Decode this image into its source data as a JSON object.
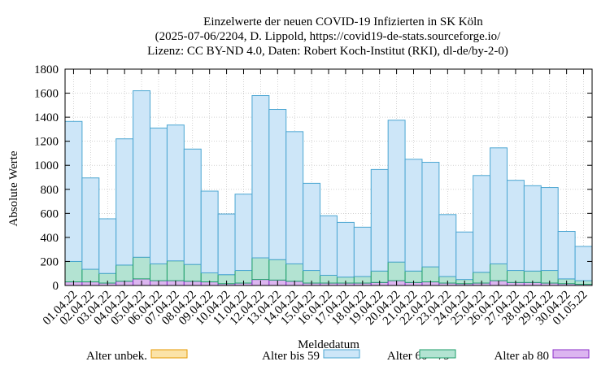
{
  "chart_data": {
    "type": "bar",
    "stacked": true,
    "title_lines": [
      "Einzelwerte der neuen COVID-19 Infizierten in SK Köln",
      "(2025-07-06/2204, D. Lippold, https://covid19-de-stats.sourceforge.io/",
      "Lizenz: CC BY-ND 4.0, Daten: Robert Koch-Institut (RKI), dl-de/by-2-0)"
    ],
    "xlabel": "Meldedatum",
    "ylabel": "Absolute Werte",
    "ylim": [
      0,
      1800
    ],
    "yticks": [
      0,
      200,
      400,
      600,
      800,
      1000,
      1200,
      1400,
      1600,
      1800
    ],
    "legend_placement": "bottom",
    "categories": [
      "01.04.22",
      "02.04.22",
      "03.04.22",
      "04.04.22",
      "05.04.22",
      "06.04.22",
      "07.04.22",
      "08.04.22",
      "09.04.22",
      "10.04.22",
      "11.04.22",
      "12.04.22",
      "13.04.22",
      "14.04.22",
      "15.04.22",
      "16.04.22",
      "17.04.22",
      "18.04.22",
      "19.04.22",
      "20.04.22",
      "21.04.22",
      "22.04.22",
      "23.04.22",
      "24.04.22",
      "25.04.22",
      "26.04.22",
      "27.04.22",
      "28.04.22",
      "29.04.22",
      "30.04.22",
      "01.05.22"
    ],
    "series": [
      {
        "name": "Alter ab 80",
        "fill": "#dcb5f0",
        "stroke": "#8b2fc9",
        "values": [
          30,
          30,
          20,
          35,
          55,
          40,
          40,
          35,
          30,
          15,
          20,
          50,
          45,
          35,
          20,
          20,
          20,
          20,
          25,
          40,
          25,
          30,
          20,
          15,
          20,
          40,
          25,
          25,
          20,
          15,
          10
        ]
      },
      {
        "name": "Alter 60 - 79",
        "fill": "#b3e3d2",
        "stroke": "#1e9e6a",
        "values": [
          170,
          105,
          80,
          135,
          180,
          140,
          165,
          140,
          75,
          75,
          105,
          180,
          170,
          145,
          105,
          65,
          50,
          55,
          95,
          155,
          95,
          125,
          55,
          35,
          90,
          140,
          100,
          95,
          105,
          40,
          30
        ]
      },
      {
        "name": "Alter bis 59",
        "fill": "#cde6f8",
        "stroke": "#4ba6d2",
        "values": [
          1165,
          760,
          455,
          1050,
          1385,
          1130,
          1130,
          960,
          680,
          505,
          635,
          1350,
          1250,
          1100,
          725,
          495,
          455,
          410,
          845,
          1180,
          930,
          870,
          515,
          395,
          805,
          965,
          750,
          710,
          690,
          395,
          285
        ]
      },
      {
        "name": "Alter unbek.",
        "fill": "#fbe3a8",
        "stroke": "#e69a00",
        "values": [
          0,
          0,
          0,
          0,
          0,
          0,
          0,
          0,
          0,
          0,
          0,
          0,
          0,
          0,
          0,
          0,
          0,
          0,
          0,
          0,
          0,
          0,
          0,
          0,
          0,
          0,
          0,
          0,
          0,
          0,
          0
        ]
      }
    ],
    "legend_order": [
      "Alter unbek.",
      "Alter bis 59",
      "Alter 60 - 79",
      "Alter ab 80"
    ]
  }
}
